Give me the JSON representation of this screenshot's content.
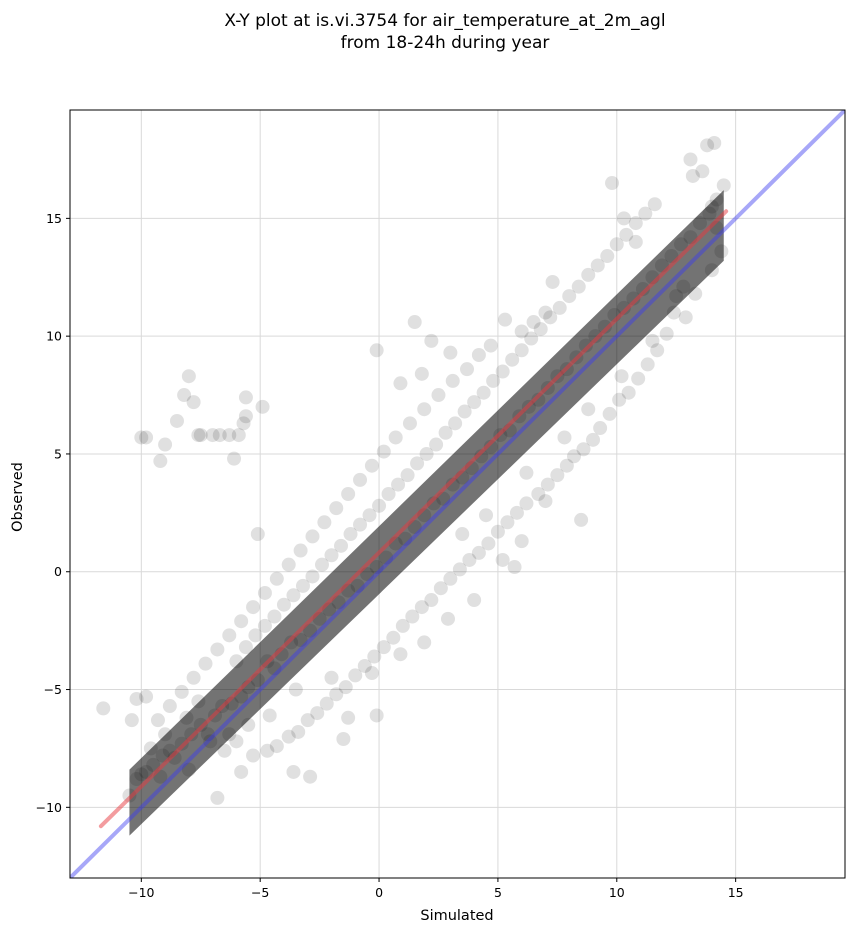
{
  "chart_data": {
    "type": "scatter",
    "title_line1": "X-Y plot at is.vi.3754 for air_temperature_at_2m_agl",
    "title_line2": "from 18-24h during year",
    "xlabel": "Simulated",
    "ylabel": "Observed",
    "xlim": [
      -13,
      19.6
    ],
    "ylim": [
      -13,
      19.6
    ],
    "x_ticks": [
      -10,
      -5,
      0,
      5,
      10,
      15
    ],
    "y_ticks": [
      -10,
      -5,
      0,
      5,
      10,
      15
    ],
    "x_tick_labels": [
      "−10",
      "−5",
      "0",
      "5",
      "10",
      "15"
    ],
    "y_tick_labels": [
      "−10",
      "−5",
      "0",
      "5",
      "10",
      "15"
    ],
    "grid": true,
    "colors": {
      "points": "#000000",
      "regression_line": "#e8393f",
      "identity_line": "#3b3bf0"
    },
    "identity_line": {
      "x": [
        -13,
        19.6
      ],
      "y": [
        -13,
        19.6
      ]
    },
    "regression_line": {
      "x": [
        -11.7,
        14.6
      ],
      "y": [
        -10.8,
        15.3
      ]
    },
    "points": [
      [
        -11.6,
        -5.8
      ],
      [
        -10.0,
        5.7
      ],
      [
        -9.8,
        5.7
      ],
      [
        -9.2,
        4.7
      ],
      [
        -9.0,
        5.4
      ],
      [
        -8.5,
        6.4
      ],
      [
        -8.2,
        7.5
      ],
      [
        -8.0,
        8.3
      ],
      [
        -7.8,
        7.2
      ],
      [
        -7.6,
        5.8
      ],
      [
        -7.5,
        5.8
      ],
      [
        -7.0,
        5.8
      ],
      [
        -6.7,
        5.8
      ],
      [
        -6.3,
        5.8
      ],
      [
        -6.1,
        4.8
      ],
      [
        -5.9,
        5.8
      ],
      [
        -5.7,
        6.3
      ],
      [
        -5.6,
        6.6
      ],
      [
        -5.6,
        7.4
      ],
      [
        -4.9,
        7.0
      ],
      [
        -5.1,
        1.6
      ],
      [
        -0.1,
        9.4
      ],
      [
        -10.2,
        -5.4
      ],
      [
        -10.4,
        -6.3
      ],
      [
        -9.8,
        -5.3
      ],
      [
        -6.8,
        -9.6
      ],
      [
        -5.8,
        -8.5
      ],
      [
        -3.6,
        -8.5
      ],
      [
        -2.9,
        -8.7
      ],
      [
        -1.5,
        -7.1
      ],
      [
        -1.3,
        -6.2
      ],
      [
        -0.1,
        -6.1
      ],
      [
        -10.5,
        -9.5
      ],
      [
        -10.2,
        -8.8
      ],
      [
        -10.0,
        -8.6
      ],
      [
        -9.8,
        -8.5
      ],
      [
        -9.5,
        -8.2
      ],
      [
        -9.1,
        -7.8
      ],
      [
        -8.8,
        -7.6
      ],
      [
        -8.6,
        -7.9
      ],
      [
        -8.3,
        -7.3
      ],
      [
        -7.9,
        -6.9
      ],
      [
        -7.5,
        -6.5
      ],
      [
        -7.2,
        -6.9
      ],
      [
        -6.9,
        -6.1
      ],
      [
        -6.6,
        -5.7
      ],
      [
        -6.2,
        -5.6
      ],
      [
        -5.8,
        -5.3
      ],
      [
        -5.5,
        -4.9
      ],
      [
        -5.1,
        -4.6
      ],
      [
        -4.7,
        -3.8
      ],
      [
        -4.4,
        -4.1
      ],
      [
        -4.1,
        -3.5
      ],
      [
        -3.7,
        -3.0
      ],
      [
        -3.3,
        -2.9
      ],
      [
        -2.9,
        -2.5
      ],
      [
        -2.5,
        -2.0
      ],
      [
        -2.1,
        -1.6
      ],
      [
        -1.7,
        -1.3
      ],
      [
        -1.3,
        -0.8
      ],
      [
        -0.9,
        -0.6
      ],
      [
        -0.5,
        -0.1
      ],
      [
        -0.1,
        0.2
      ],
      [
        0.3,
        0.6
      ],
      [
        0.7,
        1.2
      ],
      [
        1.1,
        1.4
      ],
      [
        1.5,
        1.9
      ],
      [
        1.9,
        2.4
      ],
      [
        2.3,
        2.9
      ],
      [
        2.7,
        3.1
      ],
      [
        3.1,
        3.7
      ],
      [
        3.5,
        4.0
      ],
      [
        3.9,
        4.4
      ],
      [
        4.3,
        4.9
      ],
      [
        4.7,
        5.3
      ],
      [
        5.1,
        5.8
      ],
      [
        5.5,
        6.0
      ],
      [
        5.9,
        6.6
      ],
      [
        6.3,
        7.0
      ],
      [
        6.7,
        7.3
      ],
      [
        7.1,
        7.8
      ],
      [
        7.5,
        8.3
      ],
      [
        7.9,
        8.6
      ],
      [
        8.3,
        9.1
      ],
      [
        8.7,
        9.6
      ],
      [
        9.1,
        10.0
      ],
      [
        9.5,
        10.4
      ],
      [
        9.9,
        10.9
      ],
      [
        10.3,
        11.2
      ],
      [
        10.7,
        11.6
      ],
      [
        11.1,
        12.0
      ],
      [
        11.5,
        12.5
      ],
      [
        11.9,
        13.0
      ],
      [
        12.3,
        13.4
      ],
      [
        12.7,
        13.9
      ],
      [
        13.1,
        14.2
      ],
      [
        13.5,
        14.8
      ],
      [
        13.9,
        15.2
      ],
      [
        14.2,
        15.8
      ],
      [
        14.5,
        16.4
      ],
      [
        13.1,
        17.5
      ],
      [
        13.2,
        16.8
      ],
      [
        13.8,
        18.1
      ],
      [
        14.1,
        18.2
      ],
      [
        13.6,
        17.0
      ],
      [
        14.0,
        15.5
      ],
      [
        14.2,
        14.6
      ],
      [
        14.4,
        13.6
      ],
      [
        14.0,
        12.8
      ],
      [
        12.8,
        12.1
      ],
      [
        13.3,
        11.8
      ],
      [
        12.4,
        11.0
      ],
      [
        12.9,
        10.8
      ],
      [
        12.1,
        10.1
      ],
      [
        11.7,
        9.4
      ],
      [
        11.3,
        8.8
      ],
      [
        10.9,
        8.2
      ],
      [
        10.5,
        7.6
      ],
      [
        10.1,
        7.3
      ],
      [
        9.7,
        6.7
      ],
      [
        9.3,
        6.1
      ],
      [
        9.0,
        5.6
      ],
      [
        8.6,
        5.2
      ],
      [
        8.2,
        4.9
      ],
      [
        7.9,
        4.5
      ],
      [
        7.5,
        4.1
      ],
      [
        7.1,
        3.7
      ],
      [
        6.7,
        3.3
      ],
      [
        6.2,
        2.9
      ],
      [
        5.8,
        2.5
      ],
      [
        5.4,
        2.1
      ],
      [
        5.0,
        1.7
      ],
      [
        5.7,
        0.2
      ],
      [
        4.6,
        1.2
      ],
      [
        4.2,
        0.8
      ],
      [
        3.8,
        0.5
      ],
      [
        3.4,
        0.1
      ],
      [
        3.0,
        -0.3
      ],
      [
        2.6,
        -0.7
      ],
      [
        2.2,
        -1.2
      ],
      [
        1.8,
        -1.5
      ],
      [
        1.4,
        -1.9
      ],
      [
        1.0,
        -2.3
      ],
      [
        0.6,
        -2.8
      ],
      [
        0.2,
        -3.2
      ],
      [
        -0.2,
        -3.6
      ],
      [
        -0.6,
        -4.0
      ],
      [
        -1.0,
        -4.4
      ],
      [
        -1.4,
        -4.9
      ],
      [
        -1.8,
        -5.2
      ],
      [
        -2.2,
        -5.6
      ],
      [
        -2.6,
        -6.0
      ],
      [
        -3.0,
        -6.3
      ],
      [
        -3.4,
        -6.8
      ],
      [
        -3.8,
        -7.0
      ],
      [
        -4.3,
        -7.4
      ],
      [
        -4.7,
        -7.6
      ],
      [
        -5.3,
        -7.8
      ],
      [
        -6.0,
        -7.2
      ],
      [
        -6.5,
        -7.6
      ],
      [
        -6.0,
        -3.8
      ],
      [
        -5.6,
        -3.2
      ],
      [
        -5.2,
        -2.7
      ],
      [
        -4.8,
        -2.3
      ],
      [
        -4.4,
        -1.9
      ],
      [
        -4.0,
        -1.4
      ],
      [
        -3.6,
        -1.0
      ],
      [
        -3.2,
        -0.6
      ],
      [
        -2.8,
        -0.2
      ],
      [
        -2.4,
        0.3
      ],
      [
        -2.0,
        0.7
      ],
      [
        -1.6,
        1.1
      ],
      [
        -1.2,
        1.6
      ],
      [
        -0.8,
        2.0
      ],
      [
        -0.4,
        2.4
      ],
      [
        0.0,
        2.8
      ],
      [
        0.4,
        3.3
      ],
      [
        0.8,
        3.7
      ],
      [
        1.2,
        4.1
      ],
      [
        1.6,
        4.6
      ],
      [
        2.0,
        5.0
      ],
      [
        2.4,
        5.4
      ],
      [
        2.8,
        5.9
      ],
      [
        3.2,
        6.3
      ],
      [
        3.6,
        6.8
      ],
      [
        4.0,
        7.2
      ],
      [
        4.4,
        7.6
      ],
      [
        4.8,
        8.1
      ],
      [
        5.2,
        8.5
      ],
      [
        5.6,
        9.0
      ],
      [
        6.0,
        9.4
      ],
      [
        6.4,
        9.9
      ],
      [
        6.8,
        10.3
      ],
      [
        7.2,
        10.8
      ],
      [
        7.6,
        11.2
      ],
      [
        8.0,
        11.7
      ],
      [
        8.4,
        12.1
      ],
      [
        8.8,
        12.6
      ],
      [
        9.2,
        13.0
      ],
      [
        9.6,
        13.4
      ],
      [
        10.0,
        13.9
      ],
      [
        10.4,
        14.3
      ],
      [
        10.8,
        14.8
      ],
      [
        11.2,
        15.2
      ],
      [
        11.6,
        15.6
      ],
      [
        9.8,
        16.5
      ],
      [
        10.3,
        15.0
      ],
      [
        10.8,
        14.0
      ],
      [
        7.3,
        12.3
      ],
      [
        7.0,
        11.0
      ],
      [
        6.5,
        10.6
      ],
      [
        6.0,
        10.2
      ],
      [
        5.3,
        10.7
      ],
      [
        4.7,
        9.6
      ],
      [
        4.2,
        9.2
      ],
      [
        3.7,
        8.6
      ],
      [
        3.1,
        8.1
      ],
      [
        2.5,
        7.5
      ],
      [
        1.9,
        6.9
      ],
      [
        1.3,
        6.3
      ],
      [
        0.7,
        5.7
      ],
      [
        0.2,
        5.1
      ],
      [
        -0.3,
        4.5
      ],
      [
        -0.8,
        3.9
      ],
      [
        -1.3,
        3.3
      ],
      [
        -1.8,
        2.7
      ],
      [
        -2.3,
        2.1
      ],
      [
        -2.8,
        1.5
      ],
      [
        -3.3,
        0.9
      ],
      [
        -3.8,
        0.3
      ],
      [
        -4.3,
        -0.3
      ],
      [
        -4.8,
        -0.9
      ],
      [
        -5.3,
        -1.5
      ],
      [
        -5.8,
        -2.1
      ],
      [
        -6.3,
        -2.7
      ],
      [
        -6.8,
        -3.3
      ],
      [
        -7.3,
        -3.9
      ],
      [
        -7.8,
        -4.5
      ],
      [
        -8.3,
        -5.1
      ],
      [
        -8.8,
        -5.7
      ],
      [
        -9.3,
        -6.3
      ],
      [
        -9.6,
        -7.5
      ],
      [
        -9.0,
        -6.9
      ],
      [
        -8.1,
        -6.2
      ],
      [
        -7.6,
        -5.5
      ],
      [
        1.5,
        10.6
      ],
      [
        2.2,
        9.8
      ],
      [
        3.0,
        9.3
      ],
      [
        0.9,
        8.0
      ],
      [
        1.8,
        8.4
      ],
      [
        3.5,
        1.6
      ],
      [
        4.5,
        2.4
      ],
      [
        6.2,
        4.2
      ],
      [
        7.8,
        5.7
      ],
      [
        8.8,
        6.9
      ],
      [
        10.2,
        8.3
      ],
      [
        11.5,
        9.8
      ],
      [
        12.5,
        11.7
      ],
      [
        8.5,
        2.2
      ],
      [
        7.0,
        3.0
      ],
      [
        6.0,
        1.3
      ],
      [
        5.2,
        0.5
      ],
      [
        4.0,
        -1.2
      ],
      [
        2.9,
        -2.0
      ],
      [
        1.9,
        -3.0
      ],
      [
        0.9,
        -3.5
      ],
      [
        -0.3,
        -4.3
      ],
      [
        -2.0,
        -4.5
      ],
      [
        -3.5,
        -5.0
      ],
      [
        -4.6,
        -6.1
      ],
      [
        -5.5,
        -6.5
      ],
      [
        -6.3,
        -6.9
      ],
      [
        -7.1,
        -7.2
      ],
      [
        -8.0,
        -8.4
      ],
      [
        -9.2,
        -8.7
      ]
    ]
  }
}
